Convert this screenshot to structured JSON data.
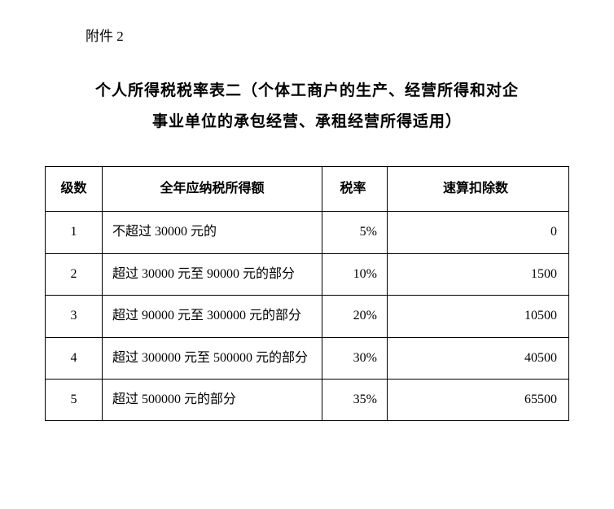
{
  "attachment_label": "附件 2",
  "title_line1": "个人所得税税率表二（个体工商户的生产、经营所得和对企",
  "title_line2": "事业单位的承包经营、承租经营所得适用）",
  "table": {
    "headers": {
      "level": "级数",
      "income": "全年应纳税所得额",
      "rate": "税率",
      "deduction": "速算扣除数"
    },
    "rows": [
      {
        "level": "1",
        "income": "不超过 30000 元的",
        "rate": "5%",
        "deduction": "0"
      },
      {
        "level": "2",
        "income": "超过 30000 元至 90000 元的部分",
        "rate": "10%",
        "deduction": "1500"
      },
      {
        "level": "3",
        "income": "超过 90000 元至 300000 元的部分",
        "rate": "20%",
        "deduction": "10500"
      },
      {
        "level": "4",
        "income": "超过 300000 元至 500000 元的部分",
        "rate": "30%",
        "deduction": "40500"
      },
      {
        "level": "5",
        "income": "超过 500000 元的部分",
        "rate": "35%",
        "deduction": "65500"
      }
    ],
    "col_widths": {
      "level": 70,
      "income": 270,
      "rate": 80
    },
    "border_color": "#000000",
    "border_width": 1.5,
    "background_color": "#ffffff",
    "header_fontsize": 16,
    "cell_fontsize": 16,
    "font_family": "SimSun"
  }
}
